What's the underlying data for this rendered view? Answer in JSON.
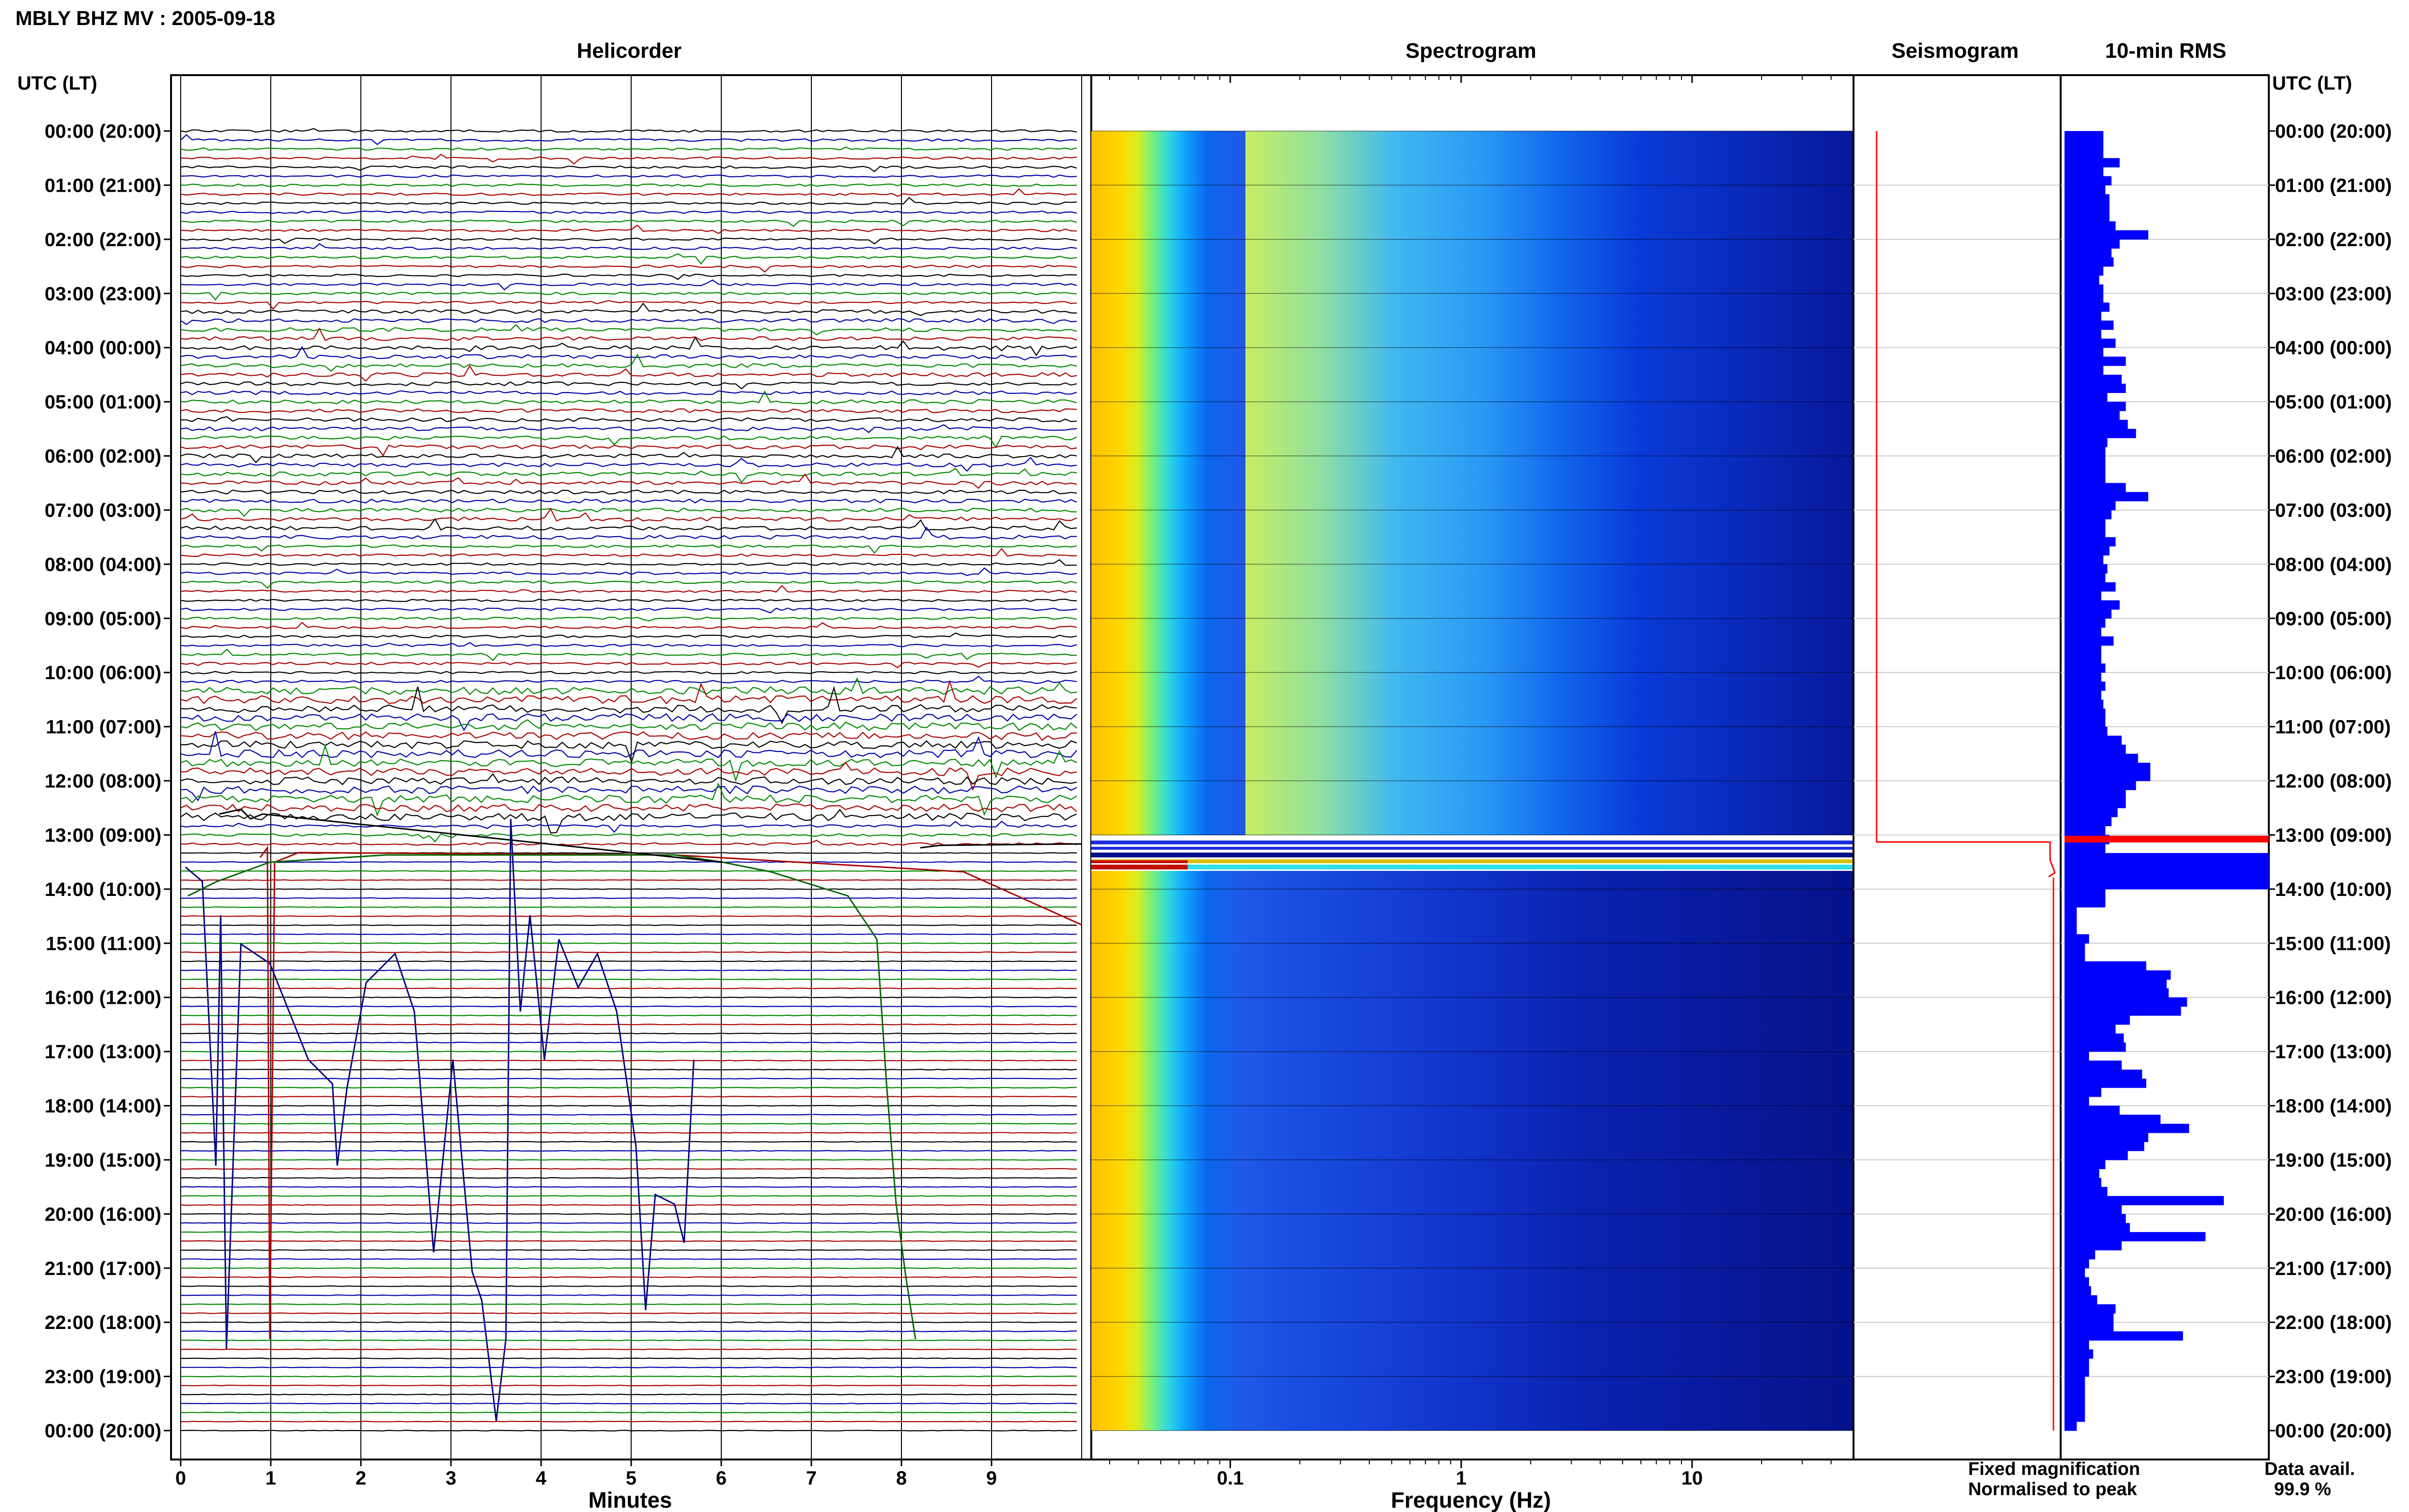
{
  "title": "MBLY BHZ MV : 2005-09-18",
  "panels": {
    "helicorder": "Helicorder",
    "spectrogram": "Spectrogram",
    "seismogram": "Seismogram",
    "rms": "10-min RMS"
  },
  "utc_header": "UTC (LT)",
  "time_labels": [
    "00:00 (20:00)",
    "01:00 (21:00)",
    "02:00 (22:00)",
    "03:00 (23:00)",
    "04:00 (00:00)",
    "05:00 (01:00)",
    "06:00 (02:00)",
    "07:00 (03:00)",
    "08:00 (04:00)",
    "09:00 (05:00)",
    "10:00 (06:00)",
    "11:00 (07:00)",
    "12:00 (08:00)",
    "13:00 (09:00)",
    "14:00 (10:00)",
    "15:00 (11:00)",
    "16:00 (12:00)",
    "17:00 (13:00)",
    "18:00 (14:00)",
    "19:00 (15:00)",
    "20:00 (16:00)",
    "21:00 (17:00)",
    "22:00 (18:00)",
    "23:00 (19:00)",
    "00:00 (20:00)"
  ],
  "helicorder_x": {
    "label": "Minutes",
    "ticks": [
      "0",
      "1",
      "2",
      "3",
      "4",
      "5",
      "6",
      "7",
      "8",
      "9"
    ],
    "trace_colors": [
      "#000000",
      "#0000aa",
      "#008800",
      "#aa0000"
    ]
  },
  "spectrogram_x": {
    "label": "Frequency (Hz)",
    "ticks": [
      "0.1",
      "1",
      "10"
    ]
  },
  "legend": {
    "fixed": "Fixed magnification",
    "fixed_color": "#0000ff",
    "normalised": "Normalised to peak",
    "normalised_color": "#ff0000"
  },
  "availability": {
    "label": "Data avail.",
    "value": "99.9 %"
  },
  "chart_data": {
    "type": "bar",
    "title": "10-min RMS",
    "bar_color": "#0000ff",
    "peak_bar_color": "#ff0000",
    "categories_unit": "10-min interval index (0-143) from 00:00 UTC",
    "xlim": [
      0,
      1
    ],
    "values": [
      0.19,
      0.19,
      0.19,
      0.27,
      0.19,
      0.23,
      0.2,
      0.22,
      0.22,
      0.22,
      0.25,
      0.41,
      0.27,
      0.23,
      0.24,
      0.19,
      0.17,
      0.19,
      0.19,
      0.22,
      0.18,
      0.24,
      0.18,
      0.25,
      0.19,
      0.3,
      0.19,
      0.28,
      0.3,
      0.21,
      0.3,
      0.27,
      0.31,
      0.35,
      0.21,
      0.2,
      0.2,
      0.2,
      0.2,
      0.3,
      0.41,
      0.25,
      0.23,
      0.2,
      0.2,
      0.25,
      0.22,
      0.19,
      0.21,
      0.2,
      0.25,
      0.18,
      0.27,
      0.23,
      0.2,
      0.18,
      0.24,
      0.18,
      0.18,
      0.2,
      0.18,
      0.2,
      0.18,
      0.19,
      0.2,
      0.2,
      0.21,
      0.28,
      0.3,
      0.36,
      0.42,
      0.42,
      0.35,
      0.3,
      0.3,
      0.26,
      0.23,
      0.2,
      0.22,
      0.2,
      1.0,
      1.0,
      1.0,
      1.0,
      0.2,
      0.2,
      0.06,
      0.06,
      0.06,
      0.12,
      0.1,
      0.1,
      0.4,
      0.52,
      0.5,
      0.51,
      0.6,
      0.57,
      0.32,
      0.25,
      0.29,
      0.3,
      0.12,
      0.28,
      0.38,
      0.4,
      0.18,
      0.12,
      0.27,
      0.47,
      0.61,
      0.41,
      0.39,
      0.31,
      0.2,
      0.17,
      0.18,
      0.21,
      0.78,
      0.28,
      0.3,
      0.32,
      0.69,
      0.28,
      0.15,
      0.12,
      0.1,
      0.12,
      0.13,
      0.16,
      0.25,
      0.24,
      0.24,
      0.58,
      0.12,
      0.14,
      0.12,
      0.12,
      0.1,
      0.1,
      0.1,
      0.1,
      0.1,
      0.06
    ]
  }
}
